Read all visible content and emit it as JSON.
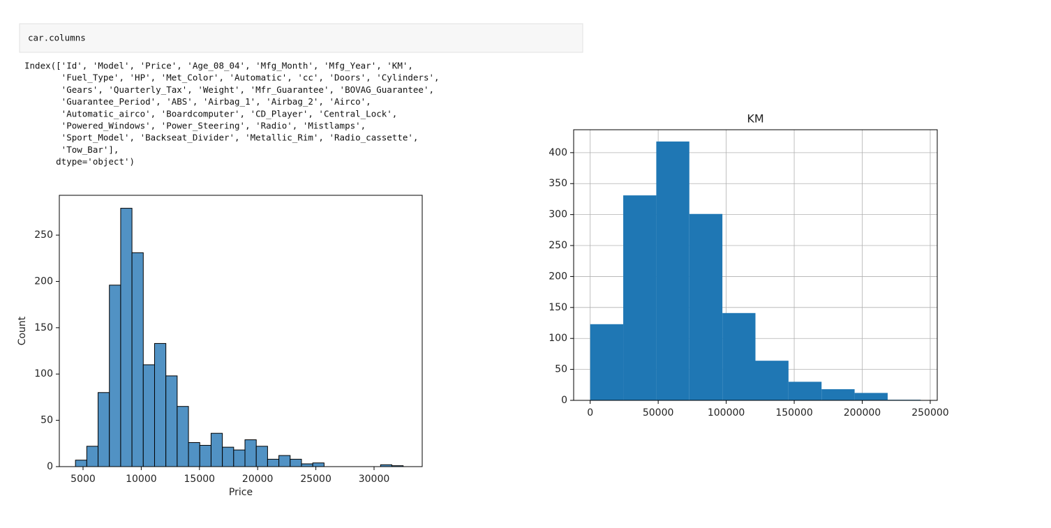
{
  "code": "car.columns",
  "output": [
    "Index(['Id', 'Model', 'Price', 'Age_08_04', 'Mfg_Month', 'Mfg_Year', 'KM',",
    "       'Fuel_Type', 'HP', 'Met_Color', 'Automatic', 'cc', 'Doors', 'Cylinders',",
    "       'Gears', 'Quarterly_Tax', 'Weight', 'Mfr_Guarantee', 'BOVAG_Guarantee',",
    "       'Guarantee_Period', 'ABS', 'Airbag_1', 'Airbag_2', 'Airco',",
    "       'Automatic_airco', 'Boardcomputer', 'CD_Player', 'Central_Lock',",
    "       'Powered_Windows', 'Power_Steering', 'Radio', 'Mistlamps',",
    "       'Sport_Model', 'Backseat_Divider', 'Metallic_Rim', 'Radio_cassette',",
    "       'Tow_Bar'],",
    "      dtype='object')"
  ],
  "chart_data": [
    {
      "type": "histogram",
      "x_label": "Price",
      "y_label": "Count",
      "color": "#5192c4",
      "edgecolor": "#000000",
      "grid": false,
      "bins": [
        4350,
        5320.69,
        6291.38,
        7262.07,
        8232.76,
        9203.45,
        10174.14,
        11144.83,
        12115.52,
        13086.21,
        14056.9,
        15027.59,
        15998.28,
        16968.97,
        17939.66,
        18910.34,
        19881.03,
        20851.72,
        21822.41,
        22793.1,
        23763.79,
        24734.48,
        25705.17,
        26675.86,
        27646.55,
        28617.24,
        29587.93,
        30558.62,
        31529.31,
        32500
      ],
      "values": [
        7,
        22,
        80,
        196,
        279,
        231,
        110,
        133,
        98,
        65,
        26,
        23,
        36,
        21,
        18,
        29,
        22,
        8,
        12,
        8,
        3,
        4,
        0,
        0,
        0,
        0,
        0,
        2,
        1
      ],
      "xlim": [
        2962,
        34137
      ],
      "ylim": [
        0,
        293
      ],
      "xticks": [
        5000,
        10000,
        15000,
        20000,
        25000,
        30000
      ],
      "yticks": [
        0,
        50,
        100,
        150,
        200,
        250
      ]
    },
    {
      "type": "histogram",
      "title": "KM",
      "color": "#1f77b4",
      "grid": true,
      "bins": [
        1,
        24300.9,
        48600.8,
        72900.7,
        97200.6,
        121500.5,
        145800.4,
        170100.3,
        194400.2,
        218700.1,
        243000
      ],
      "values": [
        123,
        331,
        418,
        301,
        141,
        64,
        30,
        18,
        12,
        1
      ],
      "xlim": [
        -12149,
        255150
      ],
      "ylim": [
        0,
        437
      ],
      "xticks": [
        0,
        50000,
        100000,
        150000,
        200000,
        250000
      ],
      "yticks": [
        0,
        50,
        100,
        150,
        200,
        250,
        300,
        350,
        400
      ]
    }
  ]
}
